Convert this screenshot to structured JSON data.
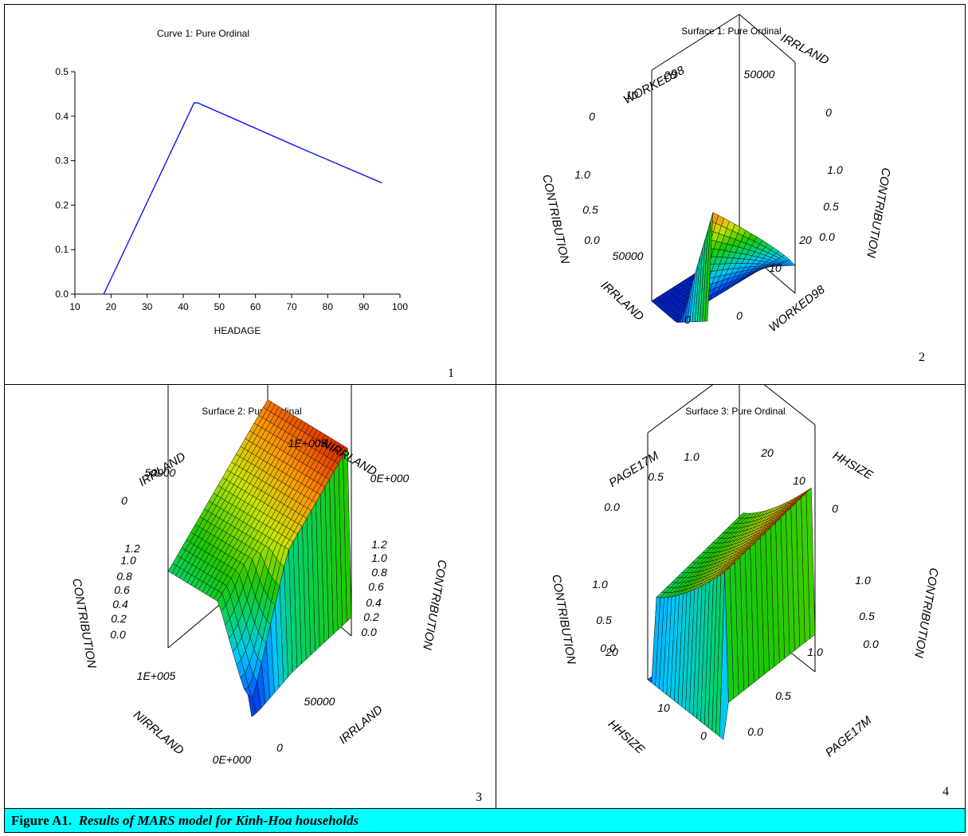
{
  "caption": {
    "label": "Figure A1.",
    "text": "Results of MARS model for Kinh-Hoa households"
  },
  "panel_numbers": [
    "1",
    "2",
    "3",
    "4"
  ],
  "chart_data": [
    {
      "type": "line",
      "title": "Curve 1: Pure Ordinal",
      "xlabel": "HEADAGE",
      "ylabel": "",
      "xlim": [
        10,
        100
      ],
      "ylim": [
        0,
        0.5
      ],
      "xticks": [
        "10",
        "20",
        "30",
        "40",
        "50",
        "60",
        "70",
        "80",
        "90",
        "100"
      ],
      "yticks": [
        "0.0",
        "0.1",
        "0.2",
        "0.3",
        "0.4",
        "0.5"
      ],
      "color": "#0000ff",
      "series": [
        {
          "x": [
            18,
            43,
            44,
            72,
            95
          ],
          "y": [
            0.0,
            0.43,
            0.43,
            0.33,
            0.25
          ]
        }
      ]
    },
    {
      "type": "surface",
      "title": "Surface 1: Pure Ordinal",
      "axes": {
        "x": {
          "label": "WORKED98",
          "ticks": [
            "0",
            "10",
            "20"
          ]
        },
        "y": {
          "label": "IRRLAND",
          "ticks": [
            "0",
            "50000"
          ]
        },
        "z": {
          "label": "CONTRIBUTION",
          "ticks": [
            "0.0",
            "0.5",
            "1.0"
          ]
        }
      }
    },
    {
      "type": "surface",
      "title": "Surface 2: Pure Ordinal",
      "axes": {
        "x": {
          "label": "IRRLAND",
          "ticks": [
            "0",
            "50000"
          ]
        },
        "y": {
          "label": "NIRRLAND",
          "ticks": [
            "0E+000",
            "1E+005"
          ]
        },
        "z": {
          "label": "CONTRIBUTION",
          "ticks": [
            "0.0",
            "0.2",
            "0.4",
            "0.6",
            "0.8",
            "1.0",
            "1.2"
          ]
        }
      }
    },
    {
      "type": "surface",
      "title": "Surface 3: Pure Ordinal",
      "axes": {
        "x": {
          "label": "PAGE17M",
          "ticks": [
            "0.0",
            "0.5",
            "1.0"
          ]
        },
        "y": {
          "label": "HHSIZE",
          "ticks": [
            "0",
            "10",
            "20"
          ]
        },
        "z": {
          "label": "CONTRIBUTION",
          "ticks": [
            "0.0",
            "0.5",
            "1.0"
          ]
        }
      }
    }
  ]
}
